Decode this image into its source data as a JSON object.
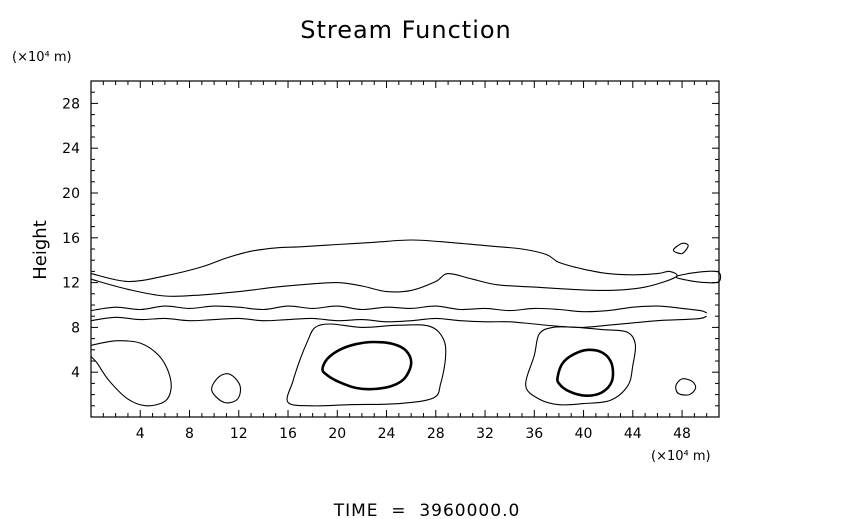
{
  "chart_data": {
    "type": "contour",
    "title": "Stream Function",
    "ylabel": "Height",
    "y_unit_label": "(×10⁴ m)",
    "x_unit_label": "(×10⁴ m)",
    "xlim": [
      0,
      51
    ],
    "ylim": [
      0,
      30
    ],
    "x_ticks": [
      4,
      8,
      12,
      16,
      20,
      24,
      28,
      32,
      36,
      40,
      44,
      48
    ],
    "y_ticks": [
      4,
      8,
      12,
      16,
      20,
      24,
      28
    ],
    "footer": "TIME  =  3960000.0",
    "contours": [
      {
        "id": "upper-band-top",
        "weight": "thin",
        "closed": false,
        "points": [
          [
            0,
            12.8
          ],
          [
            3,
            12.1
          ],
          [
            6,
            12.6
          ],
          [
            9,
            13.4
          ],
          [
            11,
            14.2
          ],
          [
            13,
            14.8
          ],
          [
            15,
            15.1
          ],
          [
            17,
            15.2
          ],
          [
            20,
            15.4
          ],
          [
            23,
            15.6
          ],
          [
            26,
            15.8
          ],
          [
            29,
            15.6
          ],
          [
            32,
            15.3
          ],
          [
            35,
            15.0
          ],
          [
            37,
            14.5
          ],
          [
            38,
            13.8
          ],
          [
            40,
            13.2
          ],
          [
            42,
            12.8
          ],
          [
            44,
            12.7
          ],
          [
            46,
            12.8
          ],
          [
            47,
            13.0
          ],
          [
            47.5,
            12.5
          ],
          [
            45,
            11.6
          ],
          [
            42,
            11.3
          ],
          [
            39,
            11.4
          ],
          [
            36,
            11.6
          ],
          [
            33,
            11.8
          ],
          [
            31,
            12.3
          ],
          [
            29,
            12.8
          ],
          [
            28,
            12.1
          ],
          [
            26,
            11.3
          ],
          [
            24,
            11.2
          ],
          [
            22,
            11.7
          ],
          [
            20,
            12.0
          ],
          [
            17,
            11.8
          ],
          [
            15,
            11.6
          ],
          [
            12,
            11.2
          ],
          [
            9,
            10.9
          ],
          [
            6,
            10.8
          ],
          [
            3,
            11.4
          ],
          [
            0,
            12.3
          ]
        ]
      },
      {
        "id": "right-edge-cell",
        "weight": "thin",
        "closed": true,
        "points": [
          [
            47.5,
            12.5
          ],
          [
            48.5,
            12.8
          ],
          [
            50,
            13.0
          ],
          [
            51,
            12.9
          ],
          [
            51,
            12.1
          ],
          [
            50,
            12.0
          ],
          [
            48.5,
            12.2
          ]
        ]
      },
      {
        "id": "small-cell-top-right",
        "weight": "thin",
        "closed": true,
        "points": [
          [
            47.3,
            14.9
          ],
          [
            48.0,
            15.5
          ],
          [
            48.5,
            15.3
          ],
          [
            48.0,
            14.6
          ]
        ]
      },
      {
        "id": "lower-band-upper",
        "weight": "thin",
        "closed": false,
        "points": [
          [
            0,
            9.5
          ],
          [
            2,
            9.8
          ],
          [
            4,
            9.6
          ],
          [
            6,
            9.9
          ],
          [
            8,
            9.7
          ],
          [
            10,
            9.9
          ],
          [
            12,
            9.8
          ],
          [
            14,
            9.6
          ],
          [
            16,
            9.9
          ],
          [
            18,
            9.7
          ],
          [
            20,
            9.9
          ],
          [
            22,
            9.6
          ],
          [
            24,
            9.8
          ],
          [
            26,
            9.7
          ],
          [
            28,
            9.9
          ],
          [
            30,
            9.6
          ],
          [
            32,
            9.7
          ],
          [
            34,
            9.5
          ],
          [
            36,
            9.7
          ],
          [
            38,
            9.6
          ],
          [
            40,
            9.4
          ],
          [
            42,
            9.5
          ],
          [
            44,
            9.8
          ],
          [
            46,
            9.9
          ],
          [
            48,
            9.7
          ],
          [
            49.5,
            9.5
          ],
          [
            50,
            9.3
          ]
        ]
      },
      {
        "id": "lower-band-lower",
        "weight": "thin",
        "closed": false,
        "points": [
          [
            0,
            8.6
          ],
          [
            2,
            8.9
          ],
          [
            4,
            8.7
          ],
          [
            6,
            8.8
          ],
          [
            8,
            8.6
          ],
          [
            10,
            8.7
          ],
          [
            12,
            8.8
          ],
          [
            14,
            8.6
          ],
          [
            16,
            8.7
          ],
          [
            18,
            8.8
          ],
          [
            20,
            8.6
          ],
          [
            22,
            8.7
          ],
          [
            24,
            8.5
          ],
          [
            26,
            8.6
          ],
          [
            28,
            8.8
          ],
          [
            30,
            8.6
          ],
          [
            32,
            8.5
          ],
          [
            34,
            8.5
          ],
          [
            36,
            8.3
          ],
          [
            38,
            8.1
          ],
          [
            40,
            8.0
          ],
          [
            42,
            8.2
          ],
          [
            44,
            8.4
          ],
          [
            46,
            8.6
          ],
          [
            48,
            8.7
          ],
          [
            49.5,
            8.8
          ],
          [
            50,
            9.0
          ]
        ]
      },
      {
        "id": "left-cell",
        "weight": "thin",
        "closed": false,
        "points": [
          [
            0,
            6.4
          ],
          [
            2,
            6.8
          ],
          [
            4,
            6.6
          ],
          [
            5.5,
            5.5
          ],
          [
            6.3,
            4.0
          ],
          [
            6.5,
            2.5
          ],
          [
            6.0,
            1.4
          ],
          [
            4.5,
            1.0
          ],
          [
            3.0,
            1.6
          ],
          [
            1.5,
            3.2
          ],
          [
            0.5,
            4.8
          ],
          [
            0,
            5.4
          ]
        ]
      },
      {
        "id": "small-cell-x11",
        "weight": "thin",
        "closed": true,
        "points": [
          [
            9.8,
            2.4
          ],
          [
            10.4,
            3.6
          ],
          [
            11.3,
            3.8
          ],
          [
            12.1,
            2.8
          ],
          [
            11.9,
            1.6
          ],
          [
            10.8,
            1.3
          ]
        ]
      },
      {
        "id": "small-cell-x48",
        "weight": "thin",
        "closed": true,
        "points": [
          [
            47.5,
            2.8
          ],
          [
            48.0,
            3.4
          ],
          [
            48.8,
            3.2
          ],
          [
            49.1,
            2.6
          ],
          [
            48.6,
            2.0
          ],
          [
            47.7,
            2.1
          ]
        ]
      },
      {
        "id": "cell-1-outer",
        "weight": "thin",
        "closed": true,
        "points": [
          [
            16,
            1.3
          ],
          [
            16.4,
            3.2
          ],
          [
            17.0,
            5.2
          ],
          [
            17.6,
            6.8
          ],
          [
            18.2,
            8.0
          ],
          [
            19.5,
            8.3
          ],
          [
            22,
            8.0
          ],
          [
            25,
            8.2
          ],
          [
            27.5,
            8.1
          ],
          [
            28.6,
            7.0
          ],
          [
            28.8,
            5.4
          ],
          [
            28.4,
            3.0
          ],
          [
            27.8,
            1.7
          ],
          [
            25,
            1.2
          ],
          [
            21,
            1.1
          ],
          [
            18,
            1.0
          ]
        ]
      },
      {
        "id": "cell-1-inner",
        "weight": "thick",
        "closed": true,
        "points": [
          [
            18.8,
            4.3
          ],
          [
            19.2,
            5.2
          ],
          [
            20.2,
            6.0
          ],
          [
            21.5,
            6.5
          ],
          [
            23,
            6.7
          ],
          [
            24.6,
            6.5
          ],
          [
            25.6,
            5.9
          ],
          [
            26.0,
            4.8
          ],
          [
            25.5,
            3.5
          ],
          [
            24.5,
            2.8
          ],
          [
            23,
            2.5
          ],
          [
            21.5,
            2.6
          ],
          [
            20.0,
            3.2
          ],
          [
            19.1,
            3.8
          ]
        ]
      },
      {
        "id": "cell-2-outer",
        "weight": "thin",
        "closed": true,
        "points": [
          [
            35.3,
            2.8
          ],
          [
            36.0,
            5.5
          ],
          [
            36.4,
            7.4
          ],
          [
            37.5,
            8.0
          ],
          [
            39.5,
            8.0
          ],
          [
            41.5,
            7.8
          ],
          [
            43.5,
            7.6
          ],
          [
            44.2,
            6.5
          ],
          [
            44.0,
            4.6
          ],
          [
            43.6,
            2.8
          ],
          [
            42.2,
            1.5
          ],
          [
            40,
            1.2
          ],
          [
            38,
            1.1
          ],
          [
            36.4,
            1.6
          ]
        ]
      },
      {
        "id": "cell-2-inner",
        "weight": "thick",
        "closed": true,
        "points": [
          [
            37.9,
            3.6
          ],
          [
            38.3,
            4.8
          ],
          [
            39.2,
            5.6
          ],
          [
            40.4,
            6.0
          ],
          [
            41.6,
            5.7
          ],
          [
            42.3,
            4.7
          ],
          [
            42.3,
            3.2
          ],
          [
            41.5,
            2.2
          ],
          [
            40.2,
            1.9
          ],
          [
            38.8,
            2.3
          ],
          [
            38.0,
            3.0
          ]
        ]
      }
    ]
  }
}
